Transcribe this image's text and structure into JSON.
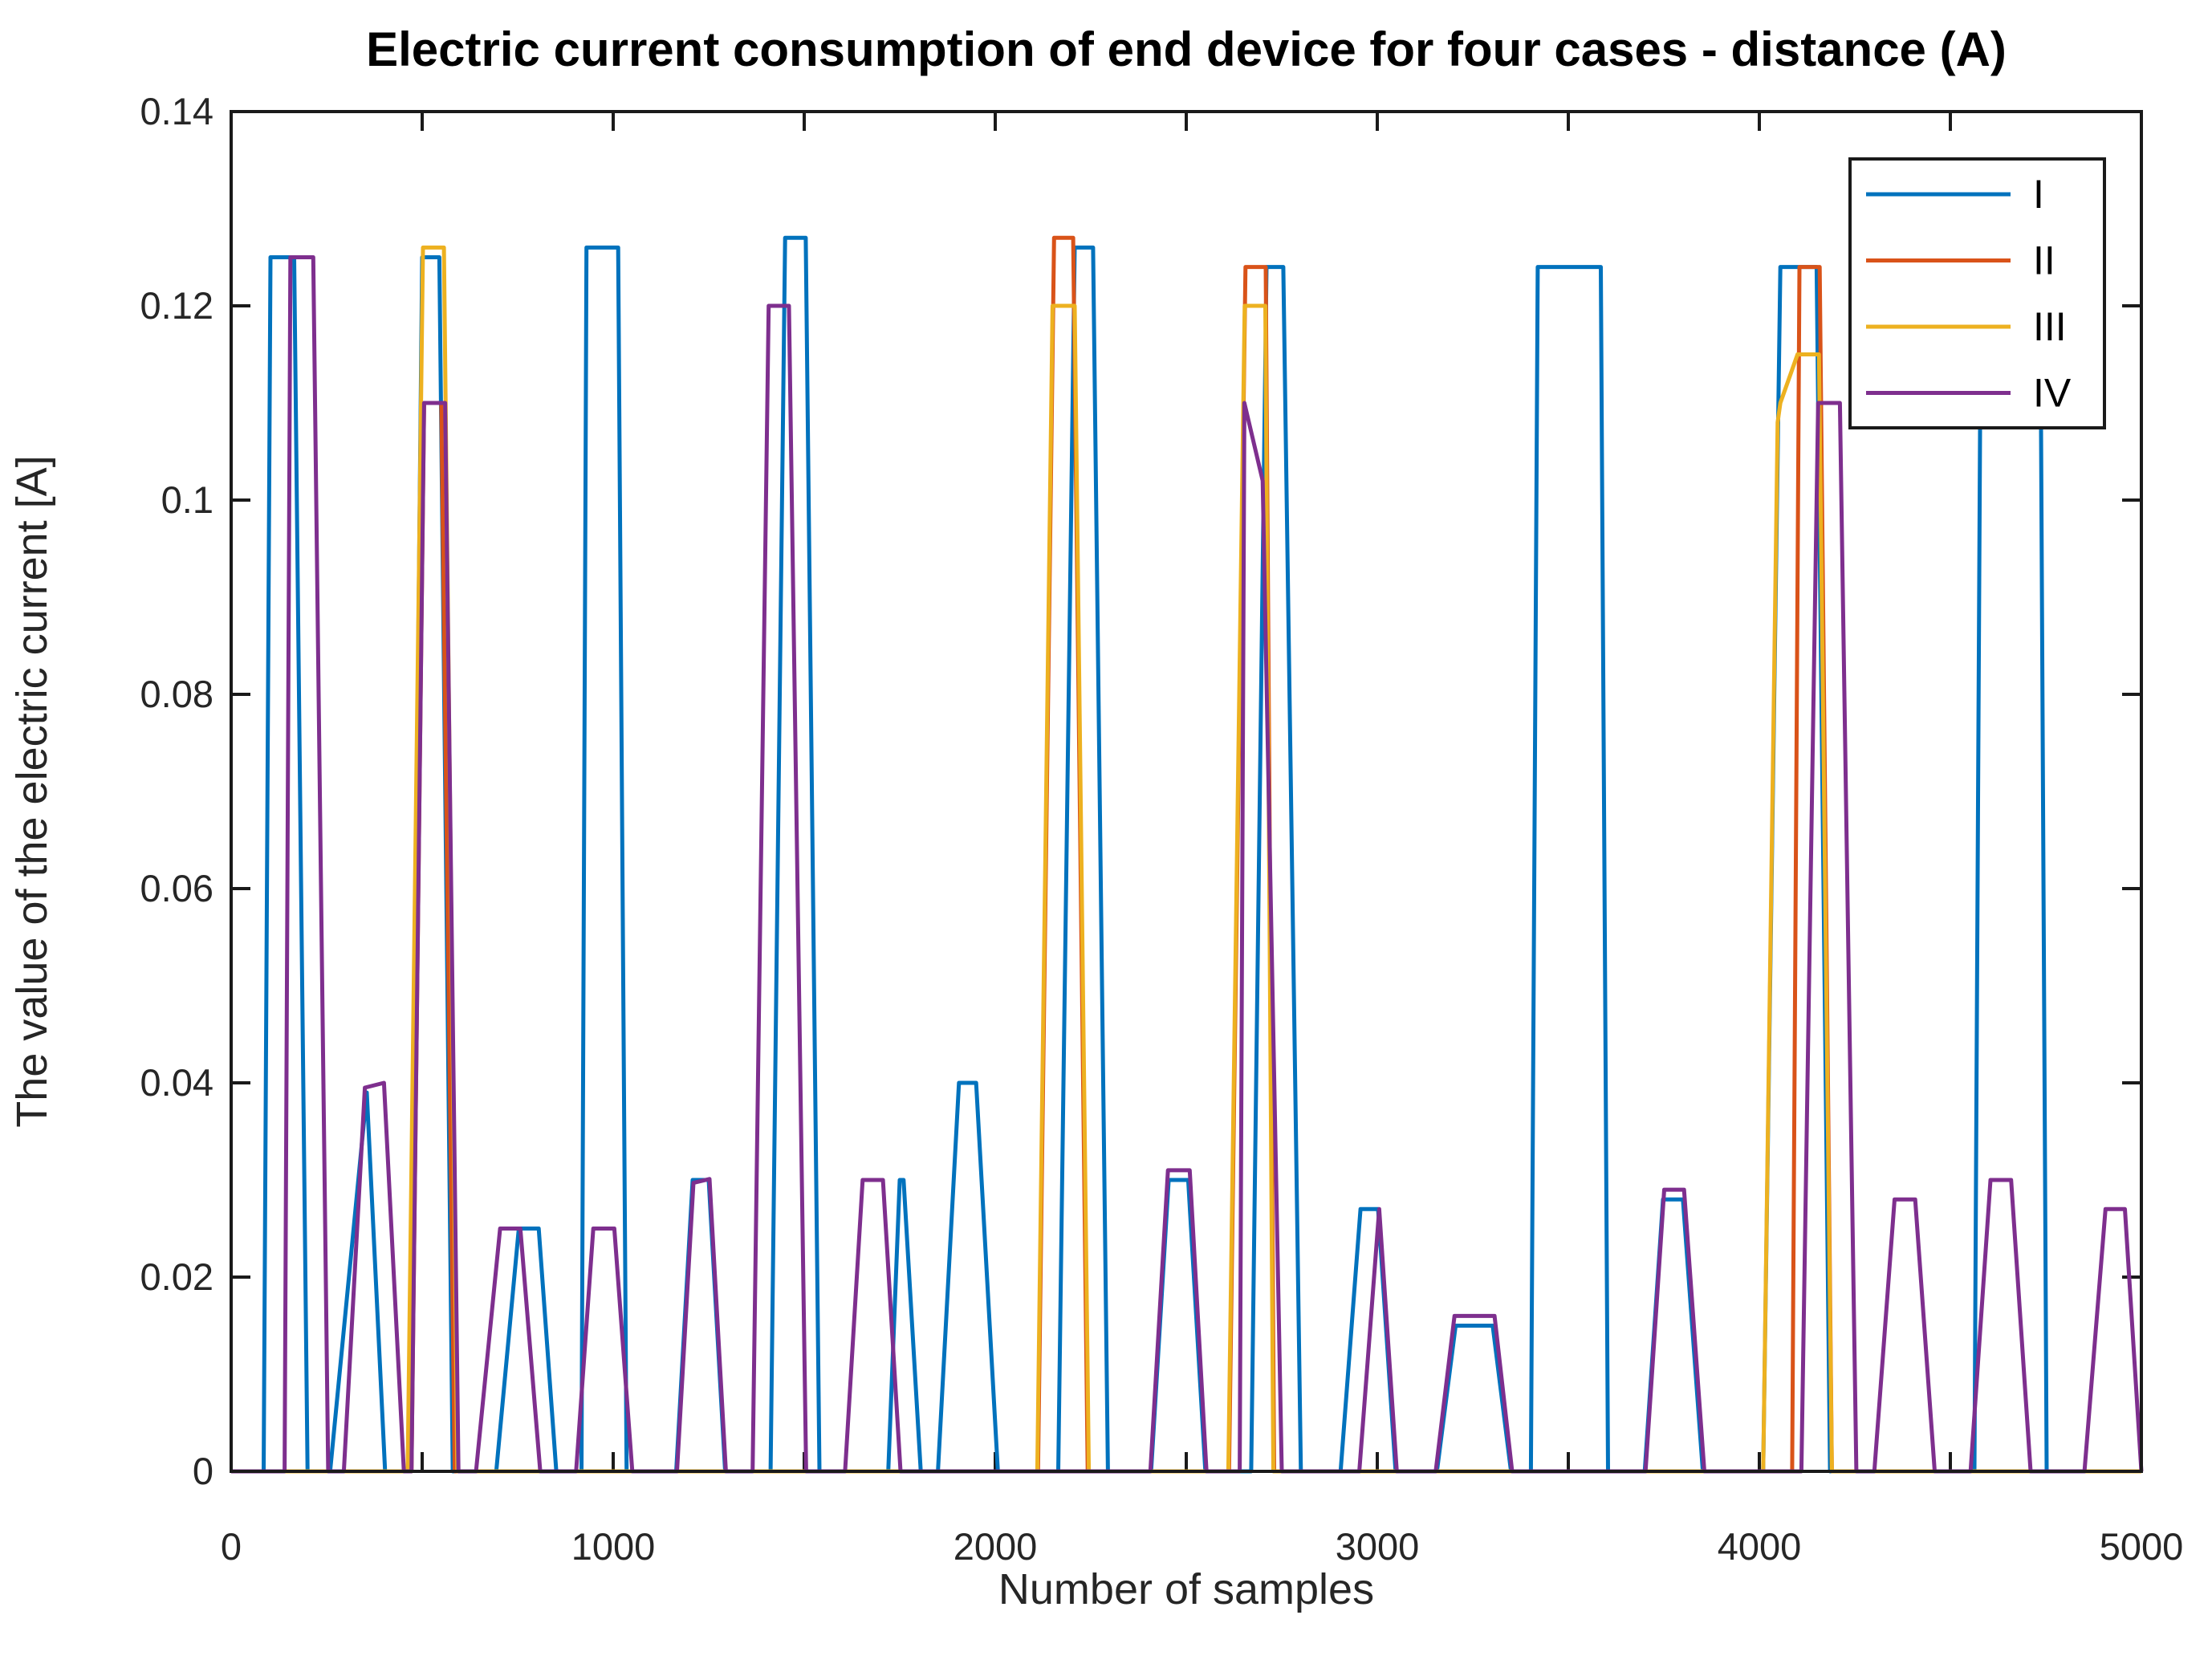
{
  "chart_data": {
    "type": "line",
    "title": "Electric current consumption of end device for four cases - distance (A)",
    "xlabel": "Number of samples",
    "ylabel": "The value of the electric current [A]",
    "xlim": [
      0,
      5000
    ],
    "ylim": [
      0,
      0.14
    ],
    "grid": false,
    "xticks": [
      0,
      500,
      1000,
      1500,
      2000,
      2500,
      3000,
      3500,
      4000,
      4500,
      5000
    ],
    "xtick_labels": [
      "0",
      "",
      "1000",
      "",
      "2000",
      "",
      "3000",
      "",
      "4000",
      "",
      "5000"
    ],
    "yticks": [
      0,
      0.02,
      0.04,
      0.06,
      0.08,
      0.1,
      0.12,
      0.14
    ],
    "ytick_labels": [
      "0",
      "0.02",
      "0.04",
      "0.06",
      "0.08",
      "0.1",
      "0.12",
      "0.14"
    ],
    "axis_color": "#1a1a1a",
    "legend": {
      "position": "northeast",
      "entries": [
        {
          "label": "I",
          "color": "#0072BD"
        },
        {
          "label": "II",
          "color": "#D95319"
        },
        {
          "label": "III",
          "color": "#EDB120"
        },
        {
          "label": "IV",
          "color": "#7E2F8E"
        }
      ]
    },
    "series": [
      {
        "name": "I",
        "color": "#0072BD",
        "points": [
          [
            0,
            0
          ],
          [
            85,
            0
          ],
          [
            103,
            0.125
          ],
          [
            165,
            0.125
          ],
          [
            200,
            0
          ],
          [
            259,
            0
          ],
          [
            355,
            0.039
          ],
          [
            403,
            0
          ],
          [
            468,
            0
          ],
          [
            500,
            0.125
          ],
          [
            545,
            0.125
          ],
          [
            580,
            0
          ],
          [
            694,
            0
          ],
          [
            753,
            0.025
          ],
          [
            805,
            0.025
          ],
          [
            851,
            0
          ],
          [
            917,
            0
          ],
          [
            930,
            0.126
          ],
          [
            1013,
            0.126
          ],
          [
            1035,
            0
          ],
          [
            1165,
            0
          ],
          [
            1208,
            0.03
          ],
          [
            1250,
            0.03
          ],
          [
            1293,
            0
          ],
          [
            1412,
            0
          ],
          [
            1450,
            0.127
          ],
          [
            1504,
            0.127
          ],
          [
            1540,
            0
          ],
          [
            1720,
            0
          ],
          [
            1750,
            0.03
          ],
          [
            1760,
            0.03
          ],
          [
            1805,
            0
          ],
          [
            1850,
            0
          ],
          [
            1905,
            0.04
          ],
          [
            1950,
            0.04
          ],
          [
            2007,
            0
          ],
          [
            2165,
            0
          ],
          [
            2208,
            0.126
          ],
          [
            2256,
            0.126
          ],
          [
            2295,
            0
          ],
          [
            2408,
            0
          ],
          [
            2454,
            0.03
          ],
          [
            2505,
            0.03
          ],
          [
            2550,
            0
          ],
          [
            2670,
            0
          ],
          [
            2710,
            0.124
          ],
          [
            2754,
            0.124
          ],
          [
            2800,
            0
          ],
          [
            2904,
            0
          ],
          [
            2956,
            0.027
          ],
          [
            3002,
            0.027
          ],
          [
            3048,
            0
          ],
          [
            3156,
            0
          ],
          [
            3205,
            0.015
          ],
          [
            3302,
            0.015
          ],
          [
            3350,
            0
          ],
          [
            3402,
            0
          ],
          [
            3420,
            0.124
          ],
          [
            3585,
            0.124
          ],
          [
            3604,
            0
          ],
          [
            3700,
            0
          ],
          [
            3748,
            0.028
          ],
          [
            3800,
            0.028
          ],
          [
            3852,
            0
          ],
          [
            4010,
            0
          ],
          [
            4055,
            0.124
          ],
          [
            4150,
            0.124
          ],
          [
            4185,
            0
          ],
          [
            4563,
            0
          ],
          [
            4580,
            0.124
          ],
          [
            4735,
            0.124
          ],
          [
            4752,
            0
          ],
          [
            5000,
            0
          ]
        ]
      },
      {
        "name": "II",
        "color": "#D95319",
        "points": [
          [
            0,
            0
          ],
          [
            472,
            0
          ],
          [
            505,
            0.11
          ],
          [
            550,
            0.11
          ],
          [
            585,
            0
          ],
          [
            2112,
            0
          ],
          [
            2154,
            0.127
          ],
          [
            2204,
            0.127
          ],
          [
            2242,
            0
          ],
          [
            2612,
            0
          ],
          [
            2655,
            0.124
          ],
          [
            2708,
            0.124
          ],
          [
            2730,
            0
          ],
          [
            4086,
            0
          ],
          [
            4105,
            0.124
          ],
          [
            4158,
            0.124
          ],
          [
            4190,
            0
          ],
          [
            5000,
            0
          ]
        ]
      },
      {
        "name": "III",
        "color": "#EDB120",
        "points": [
          [
            0,
            0
          ],
          [
            462,
            0
          ],
          [
            502,
            0.126
          ],
          [
            557,
            0.126
          ],
          [
            592,
            0
          ],
          [
            2110,
            0
          ],
          [
            2150,
            0.12
          ],
          [
            2208,
            0.12
          ],
          [
            2245,
            0
          ],
          [
            2610,
            0
          ],
          [
            2653,
            0.12
          ],
          [
            2707,
            0.12
          ],
          [
            2728,
            0
          ],
          [
            4010,
            0
          ],
          [
            4048,
            0.108
          ],
          [
            4055,
            0.11
          ],
          [
            4100,
            0.115
          ],
          [
            4156,
            0.115
          ],
          [
            4190,
            0
          ],
          [
            5000,
            0
          ]
        ]
      },
      {
        "name": "IV",
        "color": "#7E2F8E",
        "points": [
          [
            0,
            0
          ],
          [
            140,
            0
          ],
          [
            155,
            0.125
          ],
          [
            215,
            0.125
          ],
          [
            254,
            0
          ],
          [
            295,
            0
          ],
          [
            350,
            0.0395
          ],
          [
            400,
            0.04
          ],
          [
            452,
            0
          ],
          [
            472,
            0
          ],
          [
            505,
            0.11
          ],
          [
            560,
            0.11
          ],
          [
            595,
            0
          ],
          [
            641,
            0
          ],
          [
            704,
            0.025
          ],
          [
            757,
            0.025
          ],
          [
            809,
            0
          ],
          [
            903,
            0
          ],
          [
            948,
            0.025
          ],
          [
            1003,
            0.025
          ],
          [
            1050,
            0
          ],
          [
            1167,
            0
          ],
          [
            1210,
            0.0297
          ],
          [
            1252,
            0.0301
          ],
          [
            1295,
            0
          ],
          [
            1365,
            0
          ],
          [
            1407,
            0.12
          ],
          [
            1460,
            0.12
          ],
          [
            1505,
            0
          ],
          [
            1607,
            0
          ],
          [
            1653,
            0.03
          ],
          [
            1706,
            0.03
          ],
          [
            1752,
            0
          ],
          [
            2406,
            0
          ],
          [
            2452,
            0.031
          ],
          [
            2509,
            0.031
          ],
          [
            2553,
            0
          ],
          [
            2640,
            0
          ],
          [
            2652,
            0.11
          ],
          [
            2700,
            0.102
          ],
          [
            2750,
            0
          ],
          [
            2953,
            0
          ],
          [
            3005,
            0.027
          ],
          [
            3051,
            0
          ],
          [
            3153,
            0
          ],
          [
            3202,
            0.016
          ],
          [
            3307,
            0.016
          ],
          [
            3353,
            0
          ],
          [
            3702,
            0
          ],
          [
            3751,
            0.029
          ],
          [
            3803,
            0.029
          ],
          [
            3856,
            0
          ],
          [
            4110,
            0
          ],
          [
            4154,
            0.11
          ],
          [
            4211,
            0.11
          ],
          [
            4254,
            0
          ],
          [
            4301,
            0
          ],
          [
            4354,
            0.028
          ],
          [
            4408,
            0.028
          ],
          [
            4459,
            0
          ],
          [
            4553,
            0
          ],
          [
            4605,
            0.03
          ],
          [
            4659,
            0.03
          ],
          [
            4710,
            0
          ],
          [
            4851,
            0
          ],
          [
            4906,
            0.027
          ],
          [
            4957,
            0.027
          ],
          [
            5000,
            0
          ]
        ]
      }
    ]
  }
}
